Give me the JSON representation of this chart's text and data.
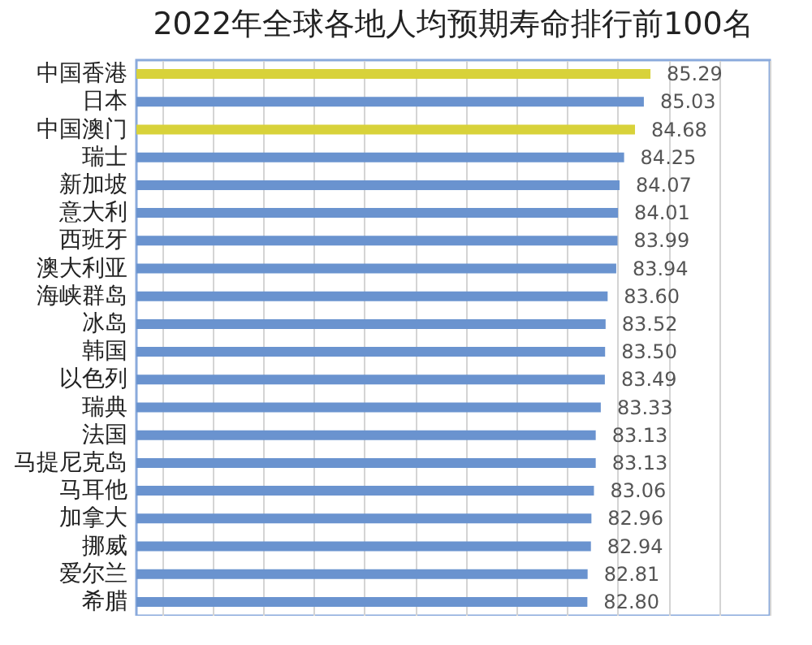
{
  "chart_data": {
    "type": "bar",
    "orientation": "horizontal",
    "title": "2022年全球各地人均预期寿命排行前100名",
    "categories": [
      "中国香港",
      "日本",
      "中国澳门",
      "瑞士",
      "新加坡",
      "意大利",
      "西班牙",
      "澳大利亚",
      "海峡群岛",
      "冰岛",
      "韩国",
      "以色列",
      "瑞典",
      "法国",
      "马提尼克岛",
      "马耳他",
      "加拿大",
      "挪威",
      "爱尔兰",
      "希腊"
    ],
    "values": [
      85.29,
      85.03,
      84.68,
      84.25,
      84.07,
      84.01,
      83.99,
      83.94,
      83.6,
      83.52,
      83.5,
      83.49,
      83.33,
      83.13,
      83.13,
      83.06,
      82.96,
      82.94,
      82.81,
      82.8
    ],
    "value_labels": [
      "85.29",
      "85.03",
      "84.68",
      "84.25",
      "84.07",
      "84.01",
      "83.99",
      "83.94",
      "83.60",
      "83.52",
      "83.50",
      "83.49",
      "83.33",
      "83.13",
      "83.13",
      "83.06",
      "82.96",
      "82.94",
      "82.81",
      "82.80"
    ],
    "colors": [
      "#d8d23a",
      "#6a93cf",
      "#d8d23a",
      "#6a93cf",
      "#6a93cf",
      "#6a93cf",
      "#6a93cf",
      "#6a93cf",
      "#6a93cf",
      "#6a93cf",
      "#6a93cf",
      "#6a93cf",
      "#6a93cf",
      "#6a93cf",
      "#6a93cf",
      "#6a93cf",
      "#6a93cf",
      "#6a93cf",
      "#6a93cf",
      "#6a93cf"
    ],
    "xlim": [
      65,
      90
    ],
    "grid": "x",
    "tick_labels": "y"
  }
}
